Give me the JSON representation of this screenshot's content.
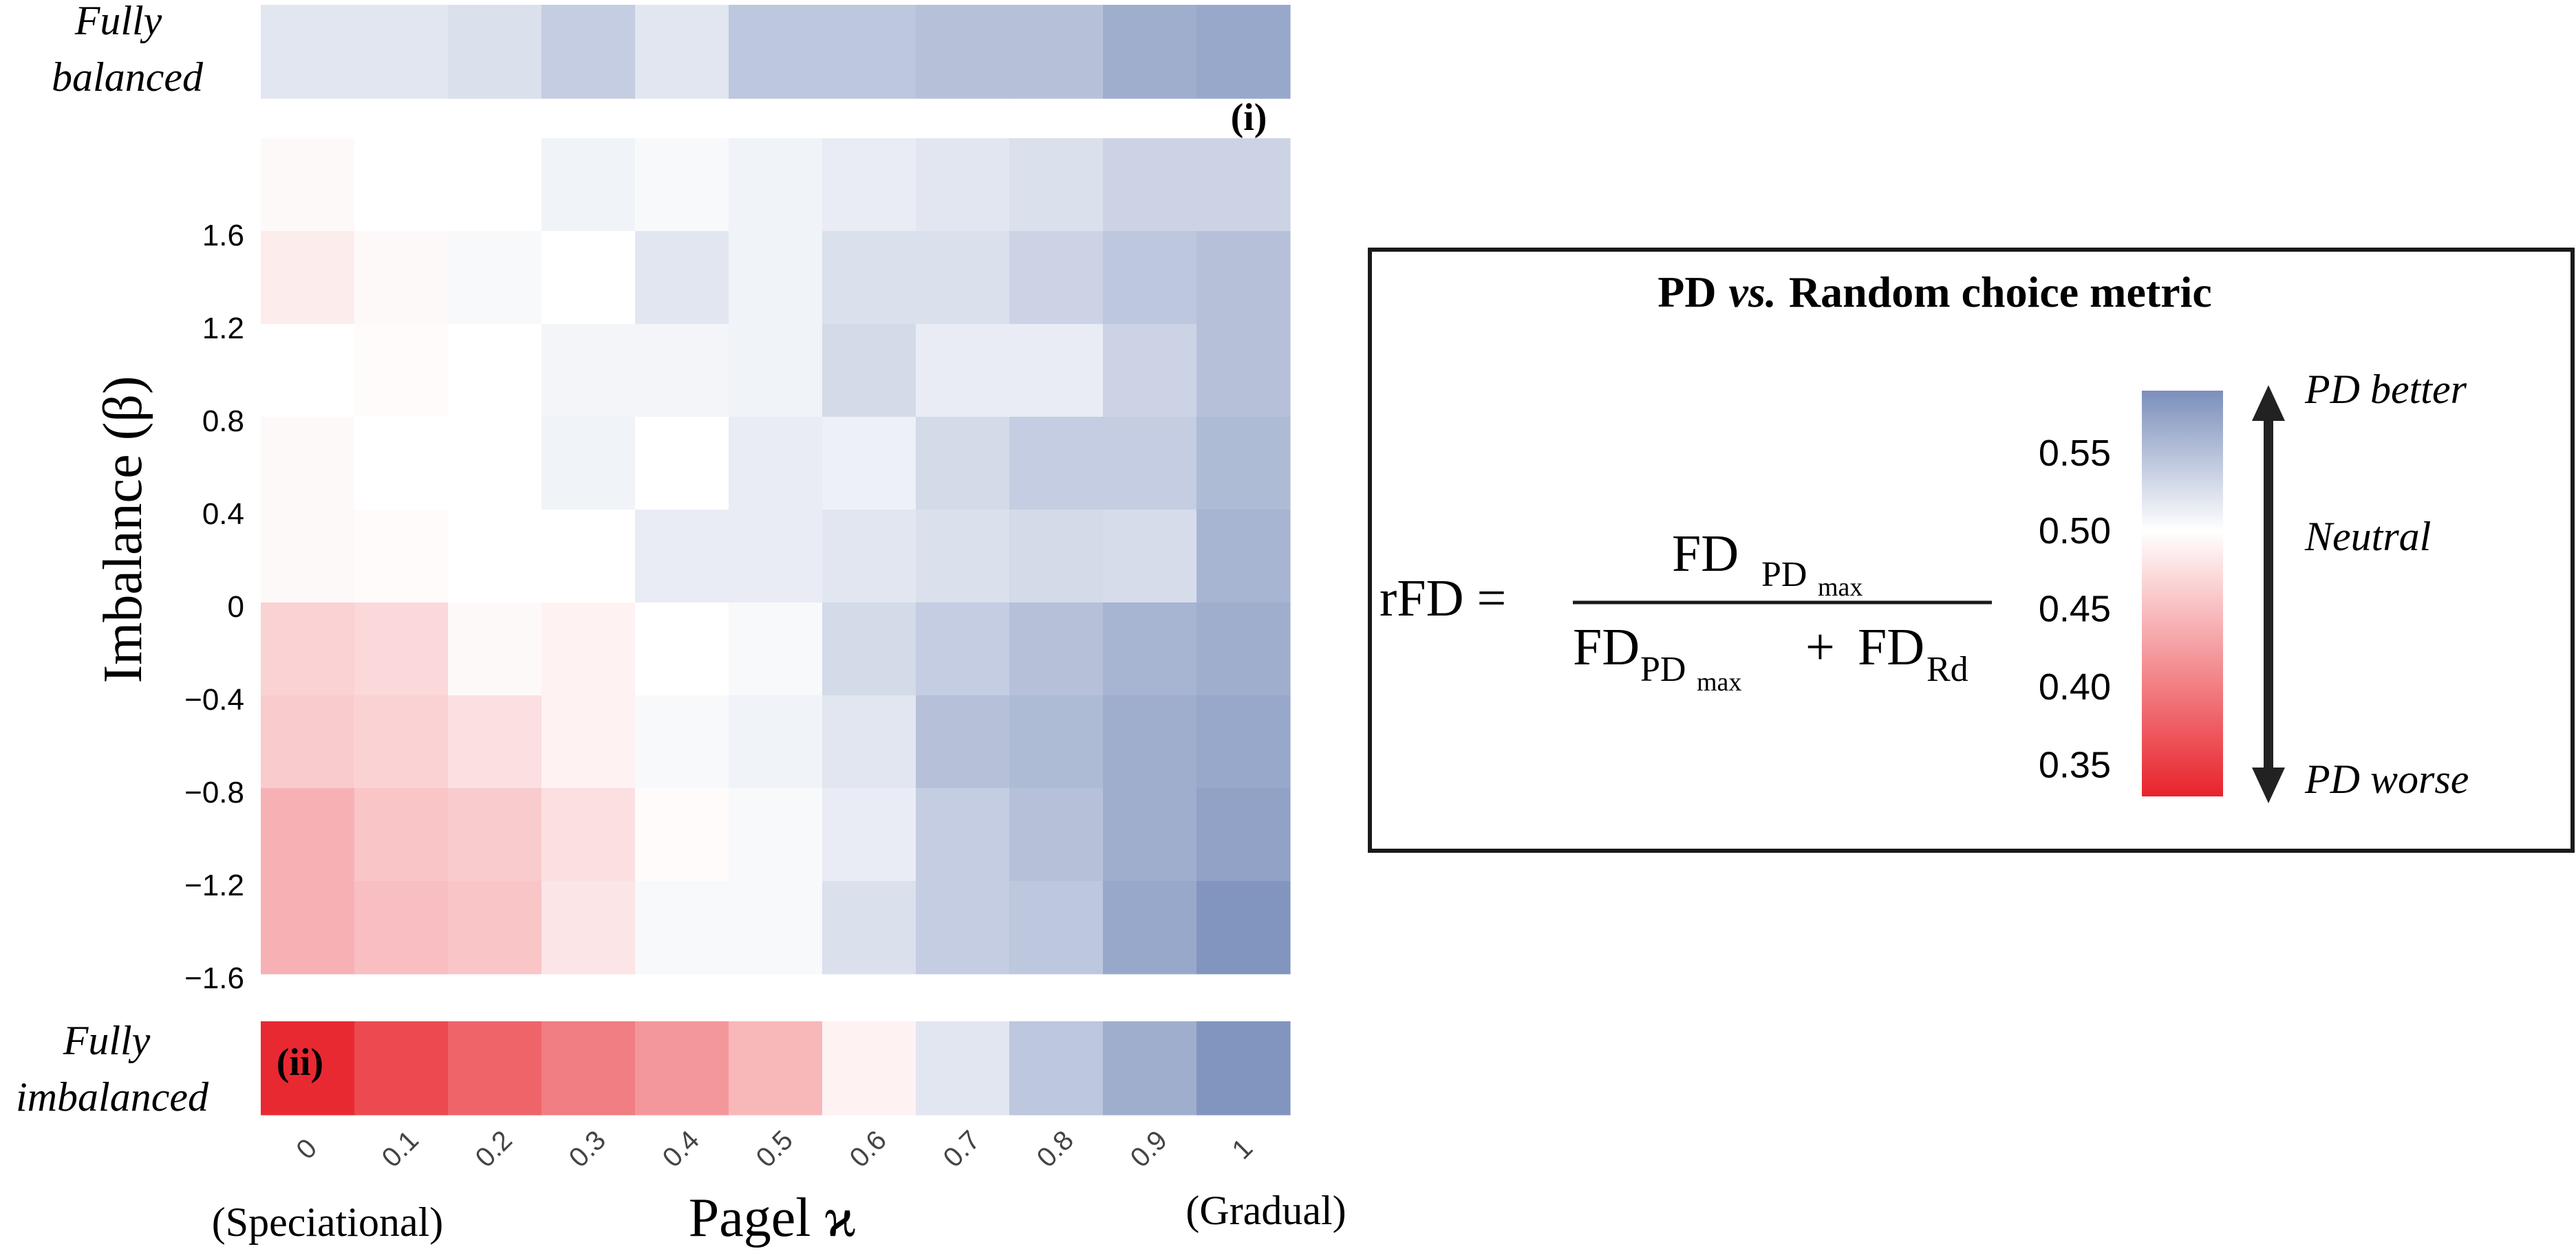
{
  "chart_data": {
    "type": "heatmap",
    "xlabel": "Pagel ϰ",
    "ylabel": "Imbalance (β)",
    "x_categories": [
      "0",
      "0.1",
      "0.2",
      "0.3",
      "0.4",
      "0.5",
      "0.6",
      "0.7",
      "0.8",
      "0.9",
      "1"
    ],
    "x_left_note": "(Speciational)",
    "x_right_note": "(Gradual)",
    "y_tick_labels": [
      "1.6",
      "1.2",
      "0.8",
      "0.4",
      "0",
      "−0.4",
      "−0.8",
      "−1.2",
      "−1.6"
    ],
    "y_rows": [
      1.8,
      1.6,
      1.2,
      0.8,
      0.4,
      0,
      -0.4,
      -0.8,
      -1.2
    ],
    "top_strip": {
      "label_line1": "Fully",
      "label_line2": "balanced",
      "panel_label": "(i)",
      "values": [
        0.52,
        0.52,
        0.525,
        0.54,
        0.52,
        0.545,
        0.545,
        0.55,
        0.55,
        0.565,
        0.57
      ]
    },
    "bottom_strip": {
      "label_line1": "Fully",
      "label_line2": "imbalanced",
      "panel_label": "(ii)",
      "values": [
        0.335,
        0.36,
        0.38,
        0.4,
        0.42,
        0.445,
        0.49,
        0.52,
        0.545,
        0.565,
        0.585
      ]
    },
    "matrix": [
      [
        0.495,
        0.5,
        0.5,
        0.51,
        0.505,
        0.51,
        0.515,
        0.52,
        0.525,
        0.535,
        0.535
      ],
      [
        0.485,
        0.495,
        0.505,
        0.5,
        0.52,
        0.51,
        0.525,
        0.525,
        0.535,
        0.545,
        0.55
      ],
      [
        0.5,
        0.497,
        0.5,
        0.508,
        0.508,
        0.51,
        0.53,
        0.515,
        0.515,
        0.535,
        0.55
      ],
      [
        0.495,
        0.5,
        0.5,
        0.51,
        0.5,
        0.515,
        0.512,
        0.53,
        0.54,
        0.54,
        0.555
      ],
      [
        0.495,
        0.497,
        0.5,
        0.5,
        0.515,
        0.515,
        0.52,
        0.525,
        0.53,
        0.528,
        0.56
      ],
      [
        0.465,
        0.47,
        0.495,
        0.49,
        0.5,
        0.505,
        0.53,
        0.54,
        0.55,
        0.56,
        0.565
      ],
      [
        0.46,
        0.465,
        0.475,
        0.49,
        0.505,
        0.51,
        0.52,
        0.55,
        0.555,
        0.565,
        0.57
      ],
      [
        0.44,
        0.455,
        0.46,
        0.475,
        0.497,
        0.505,
        0.515,
        0.54,
        0.55,
        0.565,
        0.575
      ],
      [
        0.44,
        0.45,
        0.455,
        0.48,
        0.505,
        0.505,
        0.525,
        0.54,
        0.545,
        0.57,
        0.585
      ]
    ],
    "legend": {
      "title_bold_1": "PD",
      "title_italic": "vs.",
      "title_bold_2": "Random choice metric",
      "formula_lhs": "rFD =",
      "formula_fd": "FD",
      "formula_pd": "PD",
      "formula_max": "max",
      "formula_plus": "+",
      "formula_rd": "Rd",
      "colorbar_ticks": [
        "0.55",
        "0.50",
        "0.45",
        "0.40",
        "0.35"
      ],
      "colorbar_tick_values": [
        0.55,
        0.5,
        0.45,
        0.4,
        0.35
      ],
      "colorbar_range": [
        0.33,
        0.59
      ],
      "arrow_top_label": "PD better",
      "arrow_mid_label": "Neutral",
      "arrow_bottom_label": "PD worse"
    },
    "colors": {
      "low": "#e8232b",
      "mid": "#ffffff",
      "high": "#7b8fbb"
    }
  }
}
